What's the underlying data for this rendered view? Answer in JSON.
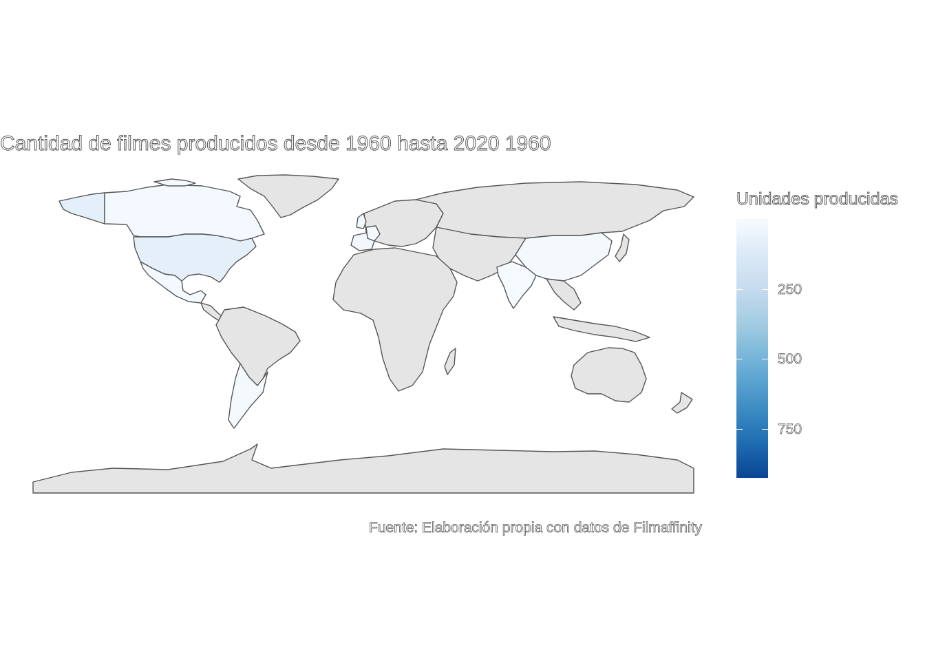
{
  "title": "Cantidad de filmes producidos desde 1960 hasta 2020 1960",
  "caption": "Fuente: Elaboración propia con datos de Filmaffinity",
  "legend": {
    "title": "Unidades producidas",
    "ticks": [
      "250",
      "500",
      "750"
    ],
    "colors": {
      "low": "#f7fbff",
      "high": "#084594"
    }
  },
  "colors": {
    "no_data": "#e5e5e5",
    "border": "#555555",
    "background": "#ffffff"
  },
  "chart_data": {
    "type": "choropleth",
    "title": "Cantidad de filmes producidos desde 1960 hasta 2020 1960",
    "legend_title": "Unidades producidas",
    "scale": {
      "min": 0,
      "max": 900,
      "ticks": [
        250,
        500,
        750
      ]
    },
    "regions": [
      {
        "name": "United States",
        "value": 100
      },
      {
        "name": "Canada",
        "value": 20
      },
      {
        "name": "Mexico",
        "value": 20
      },
      {
        "name": "Argentina",
        "value": 15
      },
      {
        "name": "China",
        "value": 15
      },
      {
        "name": "India",
        "value": 10
      },
      {
        "name": "Spain",
        "value": 30
      },
      {
        "name": "United Kingdom",
        "value": 25
      },
      {
        "name": "France",
        "value": 20
      }
    ]
  }
}
